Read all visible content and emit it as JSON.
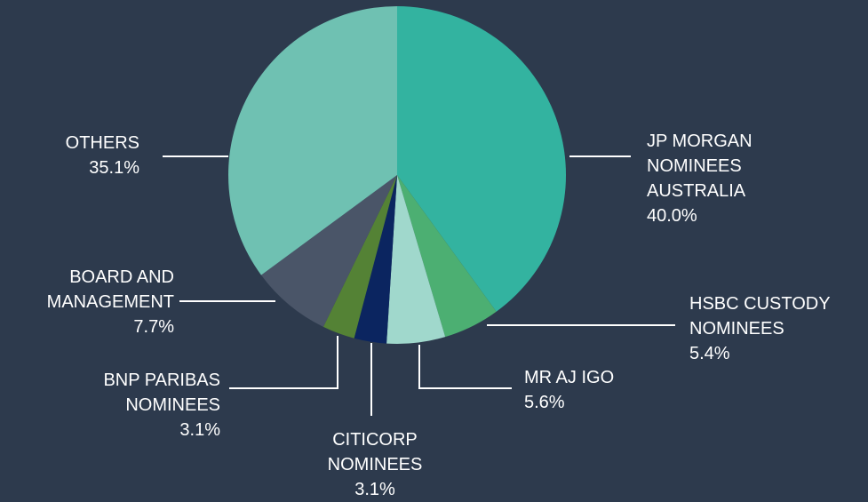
{
  "chart_data": {
    "type": "pie",
    "categories": [
      "JP MORGAN NOMINEES AUSTRALIA",
      "HSBC CUSTODY NOMINEES",
      "MR AJ IGO",
      "CITICORP NOMINEES",
      "BNP PARIBAS NOMINEES",
      "BOARD AND MANAGEMENT",
      "OTHERS"
    ],
    "values": [
      40.0,
      5.4,
      5.6,
      3.1,
      3.1,
      7.7,
      35.1
    ],
    "value_labels": [
      "40.0%",
      "5.4%",
      "5.6%",
      "3.1%",
      "3.1%",
      "7.7%",
      "35.1%"
    ],
    "colors": [
      "#33b3a0",
      "#4caf72",
      "#a0d8cc",
      "#0b2560",
      "#548235",
      "#4a5568",
      "#6fc1b2"
    ]
  }
}
